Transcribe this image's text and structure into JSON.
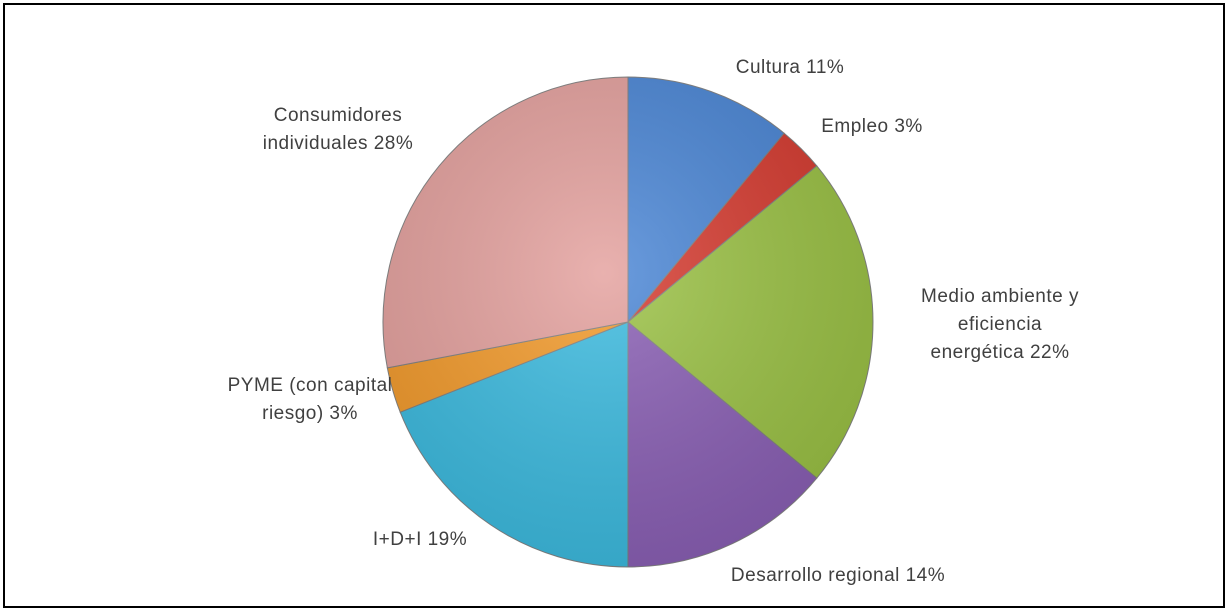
{
  "chart_data": {
    "type": "pie",
    "categories": [
      "Cultura",
      "Empleo",
      "Medio ambiente y eficiencia energética",
      "Desarrollo regional",
      "I+D+I",
      "PYME (con capital riesgo)",
      "Consumidores individuales"
    ],
    "values": [
      11,
      3,
      22,
      14,
      19,
      3,
      28
    ],
    "value_labels": [
      "11%",
      "3%",
      "22%",
      "14%",
      "19%",
      "3%",
      "28%"
    ],
    "colors": [
      "#4a86d6",
      "#d63a2f",
      "#9bc244",
      "#8a5fb5",
      "#3bbbe0",
      "#f39a2a",
      "#e4a09d"
    ]
  }
}
